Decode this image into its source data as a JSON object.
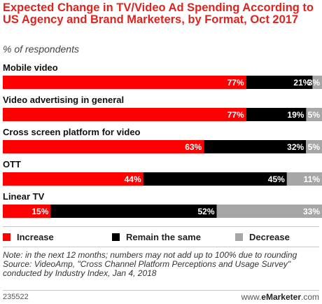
{
  "chart_data": {
    "type": "bar",
    "orientation": "horizontal-stacked",
    "title": "Expected Change in TV/Video Ad Spending According to US Agency and Brand Marketers, by Format, Oct 2017",
    "subtitle": "% of respondents",
    "categories": [
      "Mobile video",
      "Video advertising in general",
      "Cross screen platform for video",
      "OTT",
      "Linear TV"
    ],
    "series": [
      {
        "name": "Increase",
        "color": "#ff0000",
        "values": [
          77,
          77,
          63,
          44,
          15
        ],
        "labels": [
          "77%",
          "77%",
          "63%",
          "44%",
          "15%"
        ]
      },
      {
        "name": "Remain the same",
        "color": "#000000",
        "values": [
          21,
          19,
          32,
          45,
          52
        ],
        "labels": [
          "21%",
          "19%",
          "32%",
          "45%",
          "52%"
        ]
      },
      {
        "name": "Decrease",
        "color": "#a6a6a6",
        "values": [
          3,
          5,
          5,
          11,
          33
        ],
        "labels": [
          "3%",
          "5%",
          "5%",
          "11%",
          "33%"
        ]
      }
    ],
    "xlim": [
      0,
      100
    ],
    "legend_position": "bottom"
  },
  "notes": {
    "note": "Note: in the next 12 months; numbers may not add up to 100% due to rounding",
    "source": "Source: VideoAmp, \"Cross Channel Platform Perceptions and Usage Survey\" conducted by Industry Index, Jan 4, 2018"
  },
  "footer": {
    "id": "235522",
    "brand_prefix": "www.",
    "brand_name": "eMarketer",
    "brand_suffix": ".com"
  },
  "colors": {
    "title": "#e0231e",
    "increase": "#ff0000",
    "remain": "#000000",
    "decrease": "#a6a6a6"
  }
}
